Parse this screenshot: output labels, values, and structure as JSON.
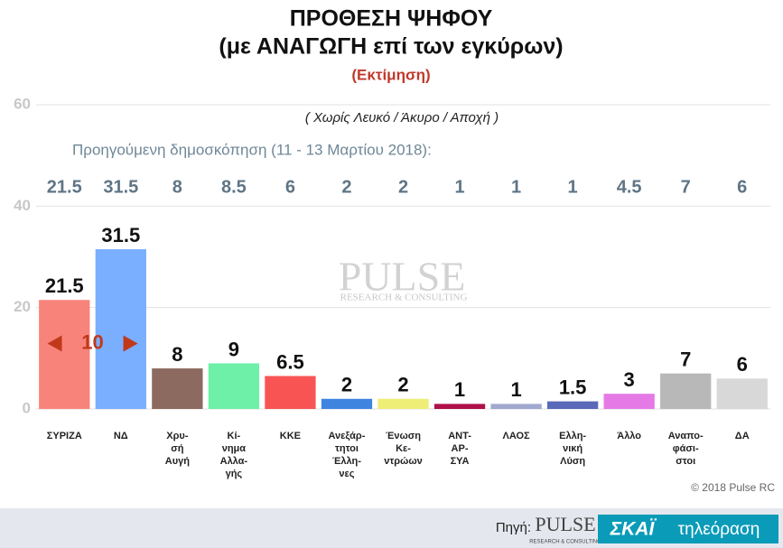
{
  "chart_data": {
    "type": "bar",
    "title": "ΠΡΟΘΕΣΗ ΨΗΦΟΥ",
    "subtitle": "(με ΑΝΑΓΩΓΗ επί των εγκύρων)",
    "estimate_label": "(Εκτίμηση)",
    "note": "( Χωρίς Λευκό / Άκυρο / Αποχή )",
    "previous_label": "Προηγούμενη δημοσκόπηση (11 - 13 Μαρτίου 2018):",
    "previous_values": [
      21.5,
      31.5,
      8,
      8.5,
      6,
      2,
      2,
      1,
      1,
      1,
      4.5,
      7,
      6
    ],
    "lead_annotation": "10",
    "categories": [
      "ΣΥΡΙΖΑ",
      "ΝΔ",
      "Χρυ-\nσή\nΑυγή",
      "Κί-\nνημα\nΑλλα-\nγής",
      "ΚΚΕ",
      "Ανεξάρ-\nτητοι\nΈλλη-\nνες",
      "Ένωση\nΚε-\nντρώων",
      "ΑΝΤ-\nΑΡ-\nΣΥΑ",
      "ΛΑΟΣ",
      "Ελλη-\nνική\nΛύση",
      "Άλλο",
      "Αναπο-\nφάσι-\nστοι",
      "ΔΑ"
    ],
    "values": [
      21.5,
      31.5,
      8,
      9,
      6.5,
      2,
      2,
      1,
      1,
      1.5,
      3,
      7,
      6
    ],
    "colors": [
      "#f8837a",
      "#7aaeff",
      "#8c6a5f",
      "#6ef0a8",
      "#f85454",
      "#3f85e0",
      "#eeee77",
      "#b0104a",
      "#a0a8d0",
      "#5a6ab8",
      "#e57ae6",
      "#b8b8b8",
      "#d8d8d8"
    ],
    "ylim": [
      0,
      60
    ],
    "yticks": [
      0,
      20,
      40,
      60
    ],
    "grid": true,
    "watermark": "PULSE",
    "watermark_sub": "RESEARCH & CONSULTING",
    "copyright": "© 2018 Pulse RC",
    "source_label": "Πηγή:",
    "source_logo": "PULSE",
    "source_logo_sub": "RESEARCH & CONSULTING",
    "channel": "ΣΚΑΪ",
    "channel_sub": "τηλεόραση"
  }
}
